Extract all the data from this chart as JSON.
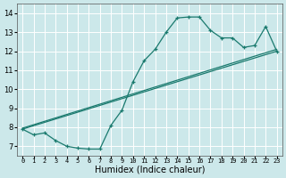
{
  "title": "",
  "xlabel": "Humidex (Indice chaleur)",
  "ylabel": "",
  "xlim": [
    -0.5,
    23.5
  ],
  "ylim": [
    6.5,
    14.5
  ],
  "xticks": [
    0,
    1,
    2,
    3,
    4,
    5,
    6,
    7,
    8,
    9,
    10,
    11,
    12,
    13,
    14,
    15,
    16,
    17,
    18,
    19,
    20,
    21,
    22,
    23
  ],
  "yticks": [
    7,
    8,
    9,
    10,
    11,
    12,
    13,
    14
  ],
  "bg_color": "#cce8ea",
  "grid_color": "#ffffff",
  "line_color": "#1a7a6e",
  "line1_x": [
    0,
    1,
    2,
    3,
    4,
    5,
    6,
    7,
    8,
    9,
    10,
    11,
    12,
    13,
    14,
    15,
    16,
    17,
    18,
    19,
    20,
    21,
    22,
    23
  ],
  "line1_y": [
    7.9,
    7.6,
    7.7,
    7.3,
    7.0,
    6.9,
    6.85,
    6.85,
    8.1,
    8.9,
    10.4,
    11.5,
    12.1,
    13.0,
    13.75,
    13.8,
    13.8,
    13.1,
    12.7,
    12.7,
    12.2,
    12.3,
    13.3,
    12.0
  ],
  "line2_x": [
    0,
    23
  ],
  "line2_y": [
    7.9,
    12.0
  ],
  "line3_x": [
    0,
    23
  ],
  "line3_y": [
    7.95,
    12.1
  ],
  "xlabel_fontsize": 7,
  "xtick_fontsize": 5,
  "ytick_fontsize": 6
}
